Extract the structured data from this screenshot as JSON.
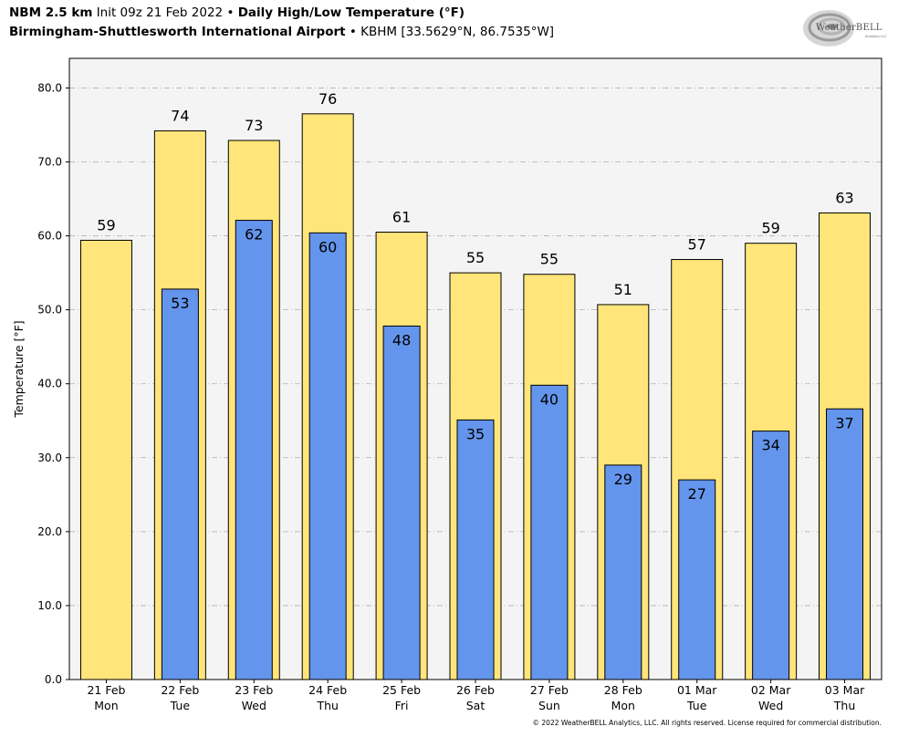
{
  "header": {
    "model": "NBM 2.5 km",
    "init": "Init 09z 21 Feb 2022",
    "separator": "•",
    "product": "Daily High/Low Temperature (°F)",
    "location": "Birmingham-Shuttlesworth International Airport",
    "station": "KBHM [33.5629°N, 86.7535°W]"
  },
  "logo": {
    "name": "WeatherBELL",
    "text_a": "Weather",
    "text_b": "BELL",
    "sub": "Analytics LLC"
  },
  "footer": {
    "copyright": "© 2022 WeatherBELL Analytics, LLC. All rights reserved. License required for commercial distribution."
  },
  "colors": {
    "high": "#ffe57a",
    "low": "#6495ed",
    "plot_bg": "#f4f4f4",
    "grid": "#b0b0b0"
  },
  "chart_data": {
    "type": "bar",
    "ylabel": "Temperature [°F]",
    "ylim": [
      0,
      84
    ],
    "yticks": [
      0,
      10,
      20,
      30,
      40,
      50,
      60,
      70,
      80
    ],
    "ytick_labels": [
      "0.0",
      "10.0",
      "20.0",
      "30.0",
      "40.0",
      "50.0",
      "60.0",
      "70.0",
      "80.0"
    ],
    "grid": "horizontal dash-dot",
    "categories": [
      "21 Feb",
      "22 Feb",
      "23 Feb",
      "24 Feb",
      "25 Feb",
      "26 Feb",
      "27 Feb",
      "28 Feb",
      "01 Mar",
      "02 Mar",
      "03 Mar"
    ],
    "weekdays": [
      "Mon",
      "Tue",
      "Wed",
      "Thu",
      "Fri",
      "Sat",
      "Sun",
      "Mon",
      "Tue",
      "Wed",
      "Thu"
    ],
    "series": [
      {
        "key": "high",
        "values": [
          59.4,
          74.2,
          72.9,
          76.5,
          60.5,
          55.0,
          54.8,
          50.7,
          56.8,
          59.0,
          63.1
        ],
        "labels": [
          "59",
          "74",
          "73",
          "76",
          "61",
          "55",
          "55",
          "51",
          "57",
          "59",
          "63"
        ]
      },
      {
        "key": "low",
        "values": [
          null,
          52.8,
          62.1,
          60.4,
          47.8,
          35.1,
          39.8,
          29.0,
          27.0,
          33.6,
          36.6
        ],
        "labels": [
          null,
          "53",
          "62",
          "60",
          "48",
          "35",
          "40",
          "29",
          "27",
          "34",
          "37"
        ]
      }
    ]
  }
}
